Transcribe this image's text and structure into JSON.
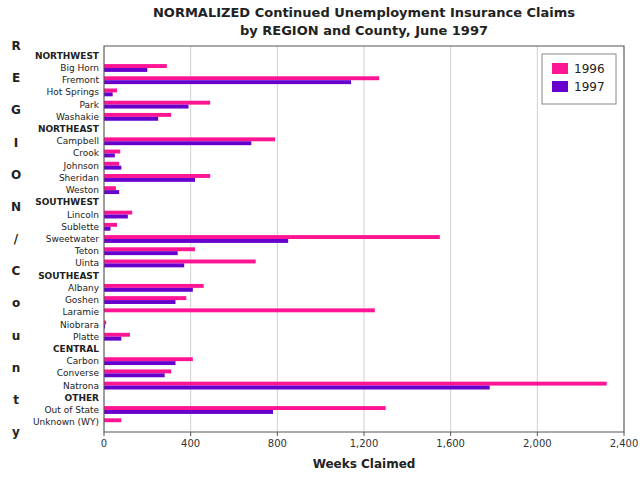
{
  "chart_data": {
    "type": "bar",
    "orientation": "horizontal",
    "title": "NORMALIZED Continued Unemployment Insurance Claims",
    "subtitle": "by REGION and County, June 1997",
    "x_label": "Weeks Claimed",
    "y_label": "REGION/County",
    "categories": [
      "NORTHWEST",
      "Big Horn",
      "Fremont",
      "Hot Springs",
      "Park",
      "Washakie",
      "NORTHEAST",
      "Campbell",
      "Crook",
      "Johnson",
      "Sheridan",
      "Weston",
      "SOUTHWEST",
      "Lincoln",
      "Sublette",
      "Sweetwater",
      "Teton",
      "Uinta",
      "SOUTHEAST",
      "Albany",
      "Goshen",
      "Laramie",
      "Niobrara",
      "Platte",
      "CENTRAL",
      "Carbon",
      "Converse",
      "Natrona",
      "OTHER",
      "Out of State",
      "Unknown (WY)"
    ],
    "series": [
      {
        "name": "1996",
        "color": "#ff1493",
        "values": [
          0,
          290,
          1270,
          60,
          490,
          310,
          0,
          790,
          75,
          70,
          490,
          55,
          0,
          130,
          60,
          1550,
          420,
          700,
          0,
          460,
          380,
          1250,
          10,
          120,
          0,
          410,
          310,
          2320,
          0,
          1300,
          80
        ]
      },
      {
        "name": "1997",
        "color": "#6600cc",
        "values": [
          0,
          200,
          1140,
          40,
          390,
          250,
          0,
          680,
          50,
          80,
          420,
          70,
          0,
          110,
          30,
          850,
          340,
          370,
          0,
          410,
          330,
          0,
          5,
          80,
          0,
          330,
          280,
          1780,
          0,
          780,
          0
        ]
      }
    ],
    "xlim": [
      0,
      2400
    ],
    "xticks": [
      0,
      400,
      800,
      {
        "value": 1200,
        "label": "1,200"
      },
      {
        "value": 1600,
        "label": "1,600"
      },
      {
        "value": 2000,
        "label": "2,000"
      },
      {
        "value": 2400,
        "label": "2,400"
      }
    ],
    "grid": true,
    "legend": "top-right"
  }
}
